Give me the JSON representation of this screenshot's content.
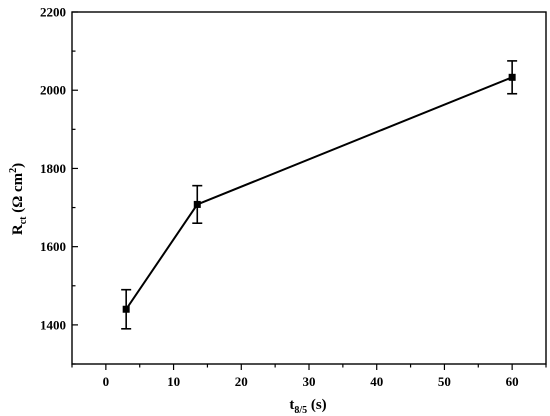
{
  "chart_data": {
    "type": "line",
    "xlabel": {
      "main": "t",
      "sub": "8/5",
      "suffix": " (s)"
    },
    "ylabel": {
      "main": "R",
      "sub": "ct",
      "paren_open": " (Ω cm",
      "sup": "2",
      "paren_close": ")"
    },
    "xlim": [
      -5,
      65
    ],
    "ylim": [
      1300,
      2200
    ],
    "x_ticks": [
      0,
      10,
      20,
      30,
      40,
      50,
      60
    ],
    "y_ticks": [
      1400,
      1600,
      1800,
      2000,
      2200
    ],
    "x_tick_labels": [
      "0",
      "10",
      "20",
      "30",
      "40",
      "50",
      "60"
    ],
    "y_tick_labels": [
      "1400",
      "1600",
      "1800",
      "2000",
      "2200"
    ],
    "grid": false,
    "series": [
      {
        "marker": "square",
        "x": [
          3,
          13.5,
          60
        ],
        "y": [
          1440,
          1708,
          2033
        ],
        "yerr": [
          50,
          48,
          42
        ]
      }
    ]
  }
}
